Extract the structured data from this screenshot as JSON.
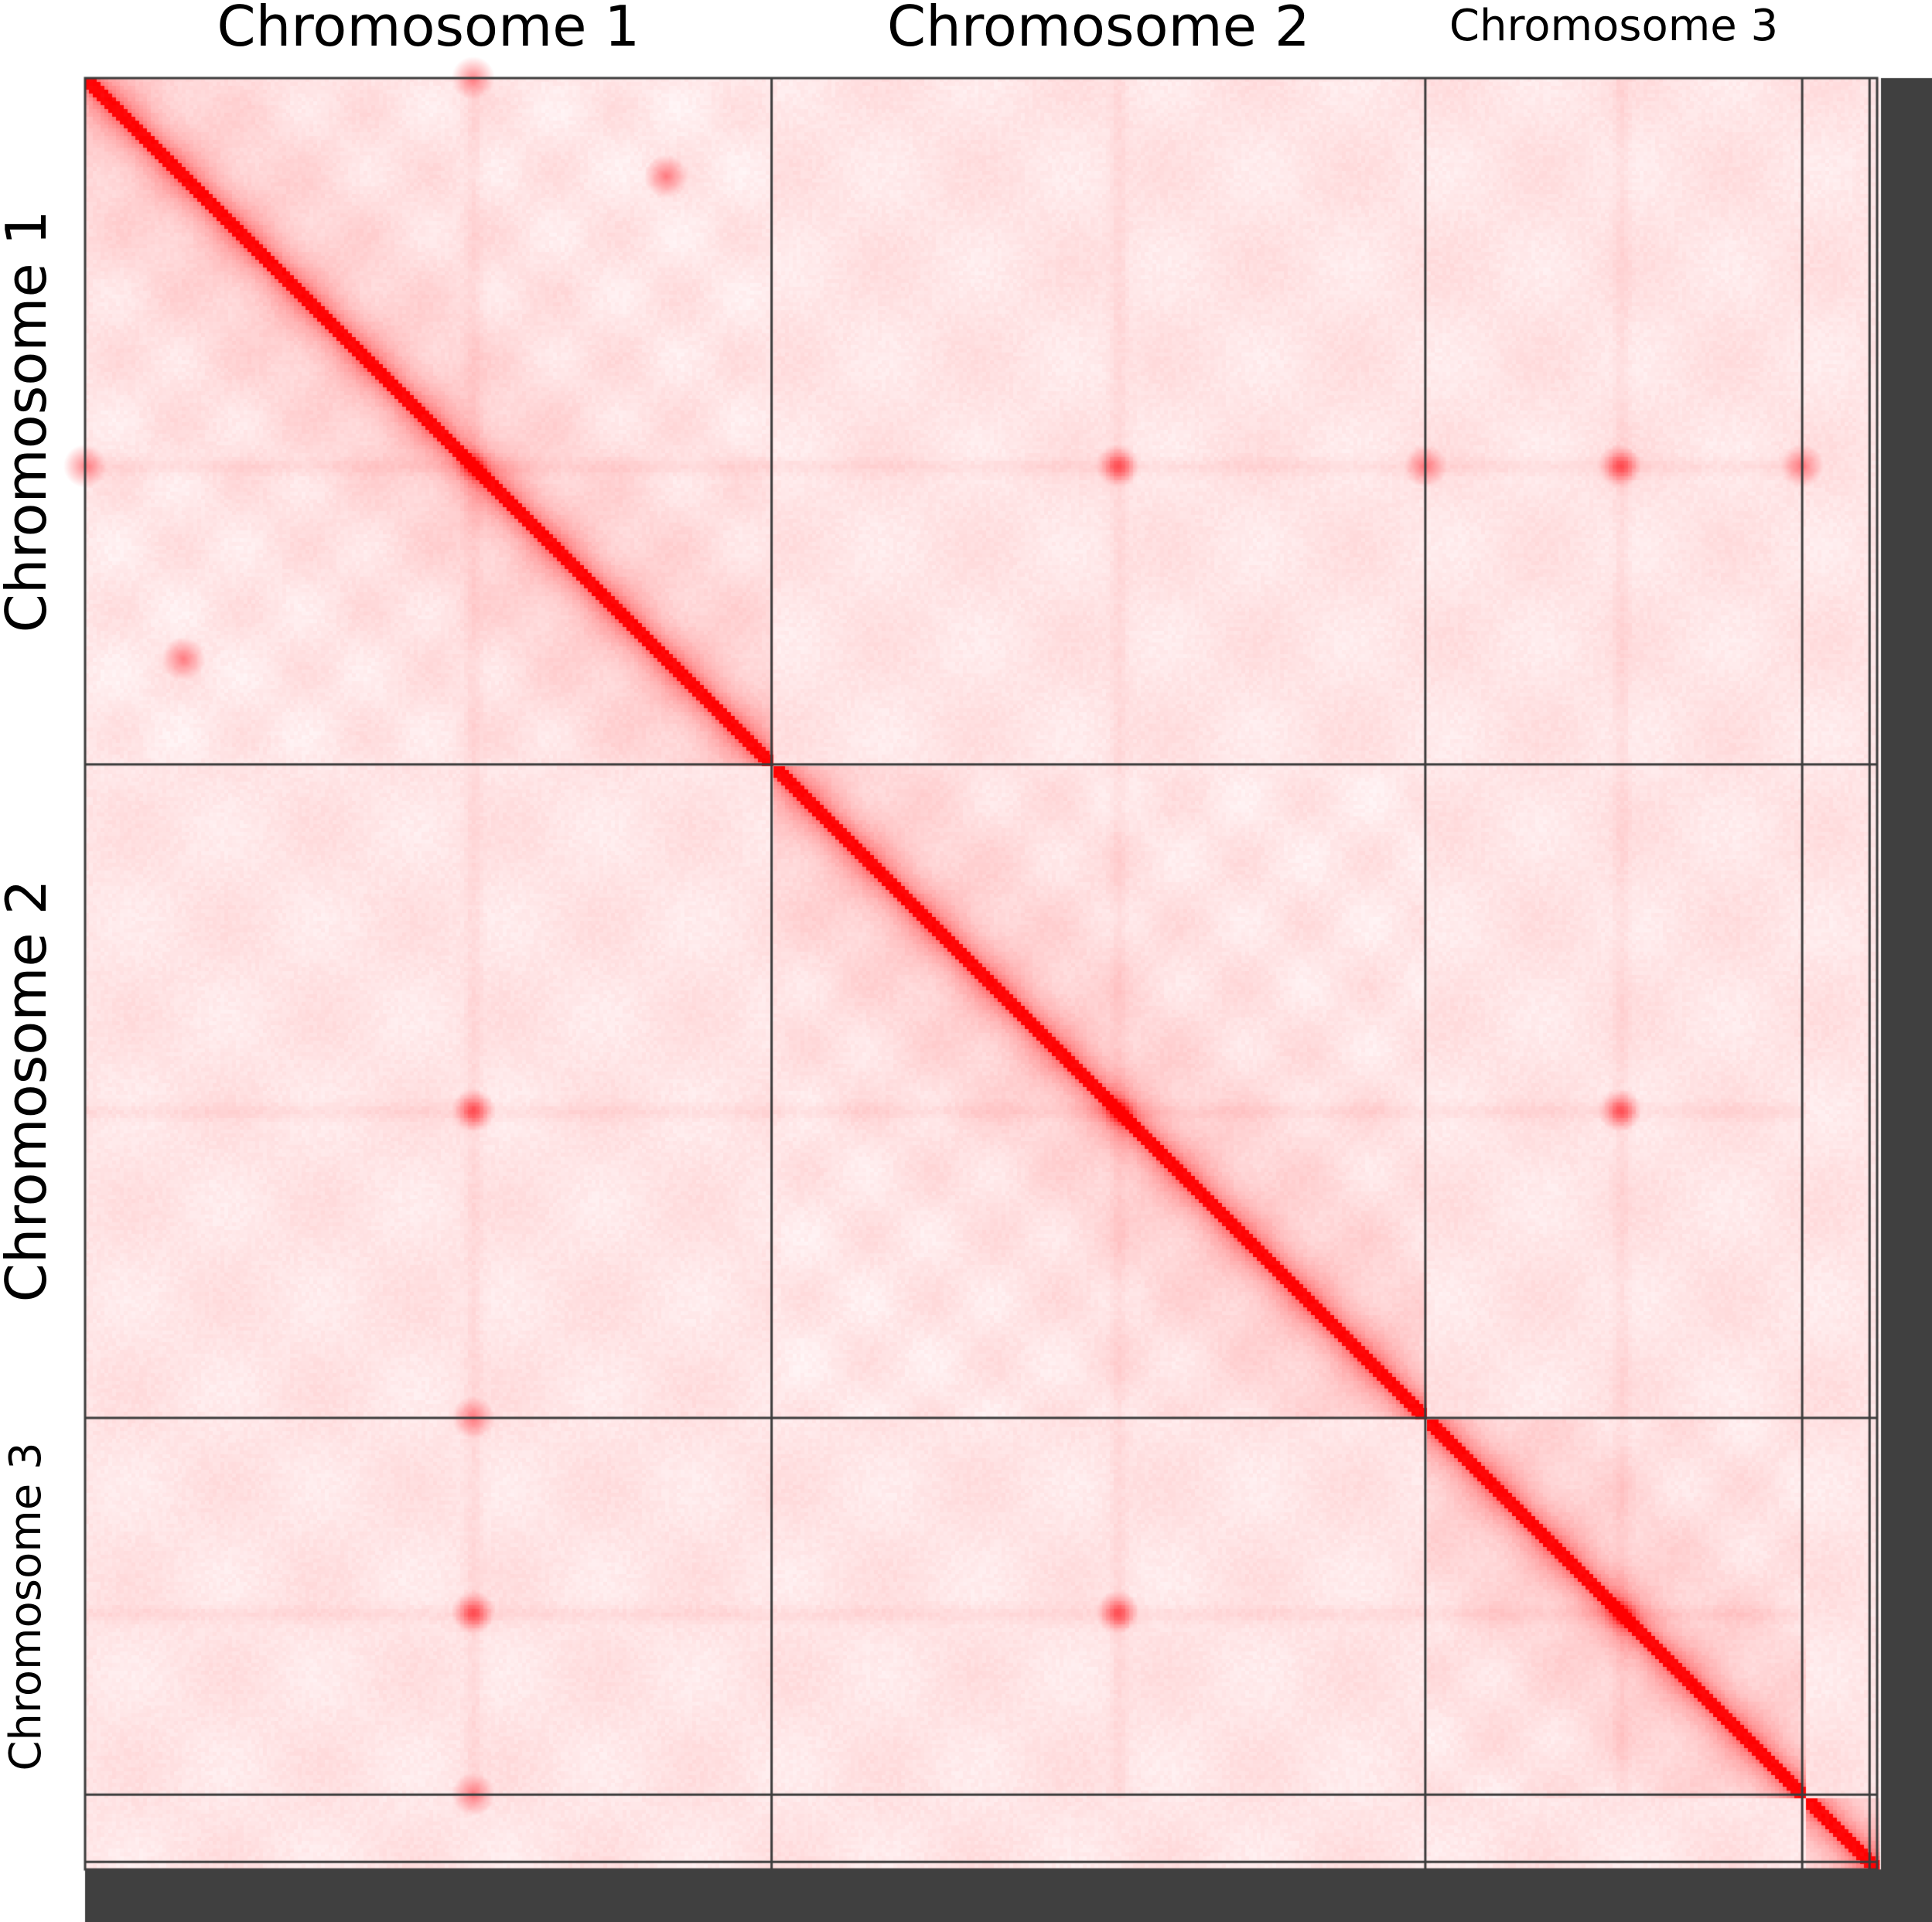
{
  "chart_data": {
    "type": "heatmap",
    "description_of_scale": "Hi-C contact frequency, white (low) to red (high)",
    "colors": {
      "high": "#ff0000",
      "low": "#fff6f7",
      "background": "#ffffff",
      "boundary_lines": "#3c3c3c",
      "frame": "#404040"
    },
    "chromosomes": [
      {
        "label": "Chromosome 1",
        "start": 0,
        "end": 0.3831,
        "centromere": 0.2166
      },
      {
        "label": "Chromosome 2",
        "start": 0.3831,
        "end": 0.7479,
        "centromere": 0.5762
      },
      {
        "label": "Chromosome 3",
        "start": 0.7479,
        "end": 0.9582,
        "centromere": 0.8563
      },
      {
        "label": "",
        "start": 0.9582,
        "end": 0.9958,
        "centromere": null
      }
    ],
    "axis_range": [
      0,
      1
    ],
    "interchromosomal_contact_spots": [
      {
        "x": 0.2166,
        "y": 0.5762
      },
      {
        "x": 0.2166,
        "y": 0.8563
      },
      {
        "x": 0.5762,
        "y": 0.8563
      },
      {
        "x": 0.3242,
        "y": 0.0549
      },
      {
        "x": 0.0,
        "y": 0.2166
      },
      {
        "x": 0.9582,
        "y": 0.2166
      },
      {
        "x": 0.7479,
        "y": 0.2166
      }
    ],
    "row_labels": [
      "Chromosome 1",
      "Chromosome 2",
      "Chromosome 3"
    ],
    "column_labels": [
      "Chromosome 1",
      "Chromosome 2",
      "Chromosome 3"
    ]
  }
}
